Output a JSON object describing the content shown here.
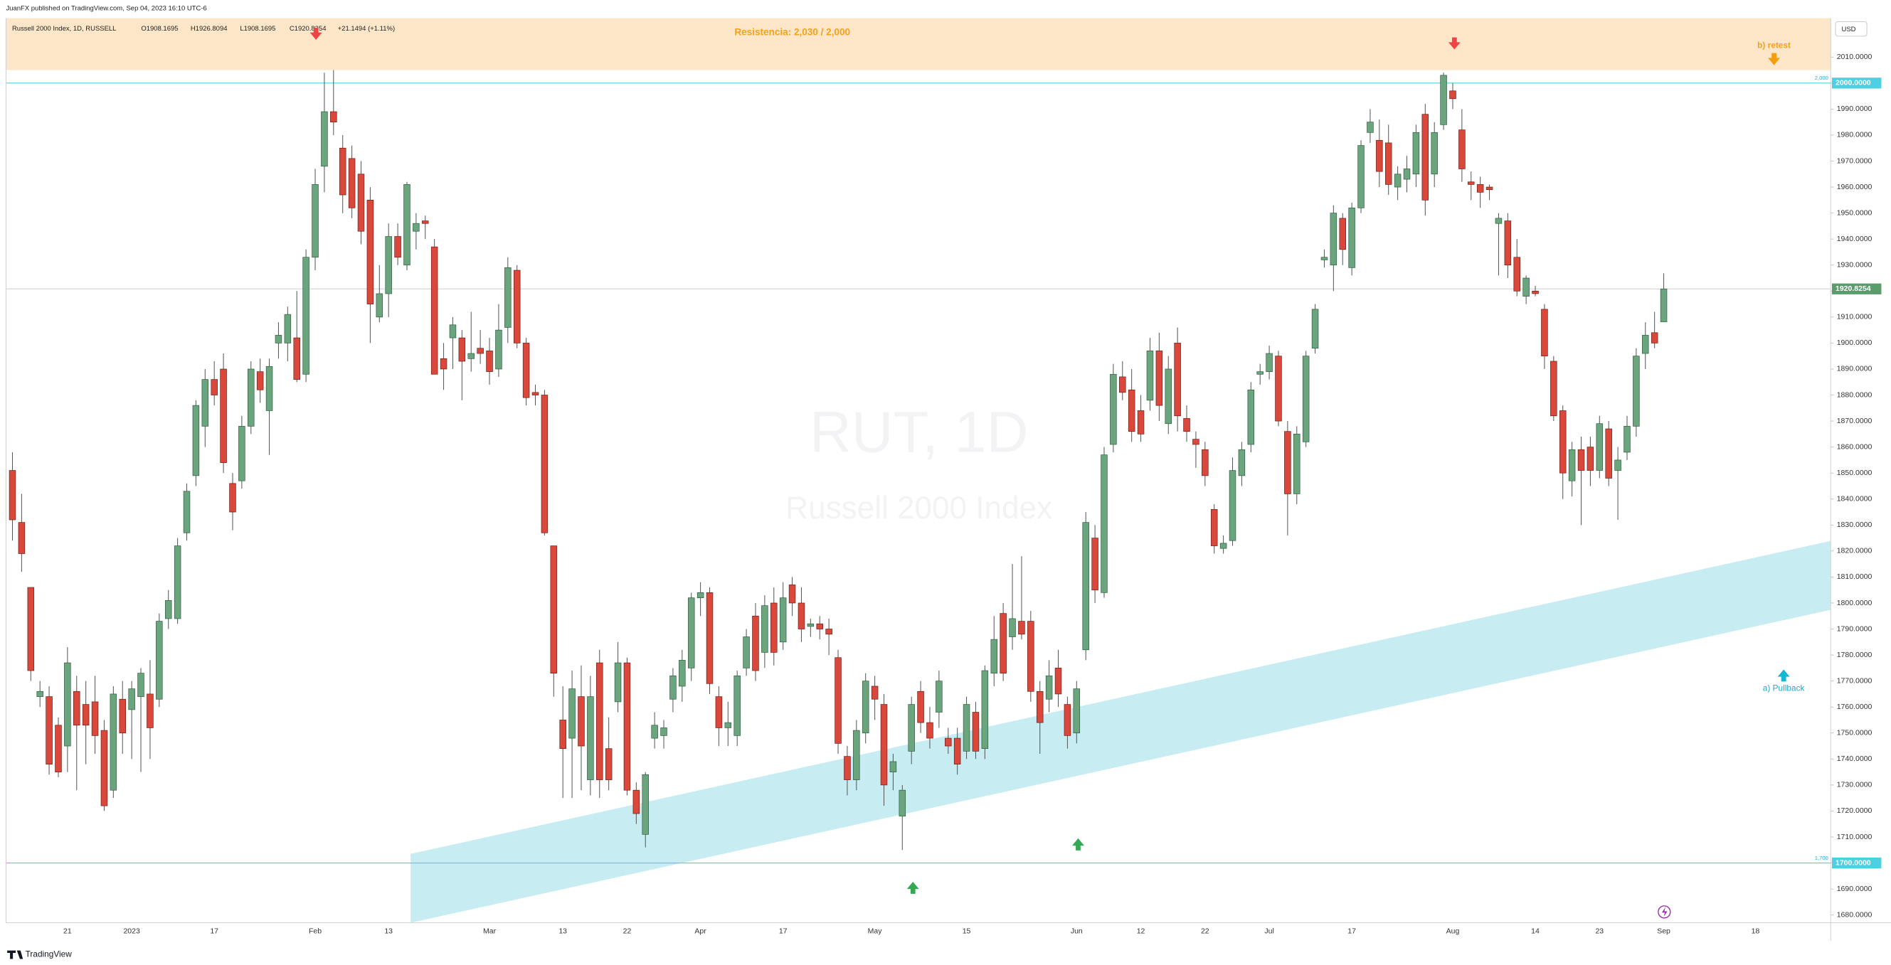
{
  "header": {
    "published": "JuanFX published on TradingView.com, Sep 04, 2023 16:10 UTC-6"
  },
  "footer": {
    "brand": "TradingView"
  },
  "chart_data": {
    "type": "candlestick",
    "symbol": "Russell 2000 Index, 1D, RUSSELL",
    "legend": [
      "O1908.1695",
      "H1926.8094",
      "L1908.1695",
      "C1920.8254",
      "+21.1494 (+1.11%)"
    ],
    "watermark": [
      "RUT, 1D",
      "Russell 2000 Index"
    ],
    "currency": "USD",
    "annotations": [
      "Resistencia: 2,030 / 2,000",
      "b) retest",
      "a) Pullback"
    ],
    "up_color": "#6aa57e",
    "down_color": "#d9483b",
    "ohlc": [
      [
        1851,
        1858,
        1824,
        1832
      ],
      [
        1831,
        1842,
        1812,
        1819
      ],
      [
        1806,
        1806,
        1770,
        1774
      ],
      [
        1764,
        1770,
        1760,
        1766
      ],
      [
        1764,
        1768,
        1734,
        1738
      ],
      [
        1753,
        1756,
        1733,
        1735
      ],
      [
        1745,
        1783,
        1735,
        1777
      ],
      [
        1766,
        1772,
        1728,
        1753
      ],
      [
        1761,
        1770,
        1738,
        1753
      ],
      [
        1762,
        1772,
        1742,
        1749
      ],
      [
        1751,
        1755,
        1720,
        1722
      ],
      [
        1728,
        1768,
        1725,
        1765
      ],
      [
        1763,
        1770,
        1742,
        1750
      ],
      [
        1759,
        1770,
        1740,
        1767
      ],
      [
        1764,
        1775,
        1735,
        1773
      ],
      [
        1765,
        1778,
        1740,
        1752
      ],
      [
        1763,
        1796,
        1760,
        1793
      ],
      [
        1794,
        1805,
        1790,
        1801
      ],
      [
        1794,
        1825,
        1792,
        1822
      ],
      [
        1827,
        1846,
        1824,
        1843
      ],
      [
        1849,
        1878,
        1845,
        1876
      ],
      [
        1868,
        1890,
        1860,
        1886
      ],
      [
        1886,
        1893,
        1876,
        1880
      ],
      [
        1890,
        1896,
        1850,
        1854
      ],
      [
        1846,
        1850,
        1828,
        1835
      ],
      [
        1847,
        1872,
        1844,
        1868
      ],
      [
        1868,
        1893,
        1865,
        1890
      ],
      [
        1889,
        1894,
        1877,
        1882
      ],
      [
        1874,
        1894,
        1857,
        1891
      ],
      [
        1900,
        1908,
        1894,
        1903
      ],
      [
        1900,
        1914,
        1893,
        1911
      ],
      [
        1902,
        1920,
        1885,
        1886
      ],
      [
        1888,
        1936,
        1885,
        1933
      ],
      [
        1933,
        1967,
        1928,
        1961
      ],
      [
        1968,
        2004,
        1958,
        1989
      ],
      [
        1989,
        2005,
        1980,
        1985
      ],
      [
        1975,
        1980,
        1950,
        1957
      ],
      [
        1971,
        1976,
        1948,
        1952
      ],
      [
        1965,
        1970,
        1938,
        1943
      ],
      [
        1955,
        1960,
        1900,
        1915
      ],
      [
        1910,
        1930,
        1908,
        1919
      ],
      [
        1919,
        1946,
        1910,
        1941
      ],
      [
        1941,
        1946,
        1930,
        1933
      ],
      [
        1930,
        1962,
        1928,
        1961
      ],
      [
        1943,
        1950,
        1936,
        1946
      ],
      [
        1947,
        1949,
        1940,
        1946
      ],
      [
        1937,
        1940,
        1888,
        1888
      ],
      [
        1894,
        1900,
        1882,
        1890
      ],
      [
        1902,
        1910,
        1890,
        1907
      ],
      [
        1902,
        1905,
        1878,
        1893
      ],
      [
        1894,
        1912,
        1889,
        1896
      ],
      [
        1898,
        1905,
        1892,
        1896
      ],
      [
        1897,
        1902,
        1884,
        1889
      ],
      [
        1890,
        1915,
        1887,
        1905
      ],
      [
        1906,
        1933,
        1900,
        1929
      ],
      [
        1928,
        1930,
        1898,
        1900
      ],
      [
        1900,
        1902,
        1876,
        1879
      ],
      [
        1881,
        1884,
        1876,
        1880
      ],
      [
        1880,
        1882,
        1826,
        1827
      ],
      [
        1822,
        1822,
        1764,
        1773
      ],
      [
        1755,
        1768,
        1725,
        1744
      ],
      [
        1748,
        1774,
        1725,
        1767
      ],
      [
        1764,
        1776,
        1728,
        1745
      ],
      [
        1732,
        1772,
        1726,
        1764
      ],
      [
        1777,
        1782,
        1725,
        1732
      ],
      [
        1744,
        1756,
        1728,
        1732
      ],
      [
        1762,
        1785,
        1758,
        1777
      ],
      [
        1777,
        1779,
        1726,
        1728
      ],
      [
        1728,
        1731,
        1715,
        1719
      ],
      [
        1711,
        1735,
        1706,
        1734
      ],
      [
        1748,
        1758,
        1744,
        1753
      ],
      [
        1749,
        1755,
        1744,
        1752
      ],
      [
        1763,
        1775,
        1758,
        1772
      ],
      [
        1768,
        1782,
        1762,
        1778
      ],
      [
        1775,
        1804,
        1770,
        1802
      ],
      [
        1802,
        1808,
        1795,
        1804
      ],
      [
        1804,
        1806,
        1765,
        1769
      ],
      [
        1764,
        1768,
        1745,
        1752
      ],
      [
        1752,
        1762,
        1745,
        1754
      ],
      [
        1749,
        1774,
        1745,
        1772
      ],
      [
        1775,
        1790,
        1772,
        1787
      ],
      [
        1795,
        1800,
        1770,
        1774
      ],
      [
        1781,
        1803,
        1775,
        1799
      ],
      [
        1800,
        1806,
        1776,
        1781
      ],
      [
        1785,
        1808,
        1782,
        1802
      ],
      [
        1807,
        1810,
        1795,
        1800
      ],
      [
        1800,
        1806,
        1785,
        1790
      ],
      [
        1791,
        1794,
        1787,
        1792
      ],
      [
        1792,
        1795,
        1786,
        1790
      ],
      [
        1790,
        1794,
        1780,
        1788
      ],
      [
        1779,
        1782,
        1742,
        1746
      ],
      [
        1741,
        1745,
        1726,
        1732
      ],
      [
        1732,
        1755,
        1728,
        1751
      ],
      [
        1750,
        1773,
        1746,
        1770
      ],
      [
        1768,
        1772,
        1755,
        1763
      ],
      [
        1761,
        1765,
        1722,
        1730
      ],
      [
        1735,
        1742,
        1728,
        1739
      ],
      [
        1718,
        1730,
        1705,
        1728
      ],
      [
        1743,
        1764,
        1738,
        1761
      ],
      [
        1766,
        1770,
        1750,
        1754
      ],
      [
        1754,
        1760,
        1744,
        1748
      ],
      [
        1758,
        1774,
        1752,
        1770
      ],
      [
        1748,
        1752,
        1742,
        1745
      ],
      [
        1748,
        1752,
        1734,
        1738
      ],
      [
        1743,
        1764,
        1740,
        1761
      ],
      [
        1758,
        1762,
        1740,
        1743
      ],
      [
        1744,
        1776,
        1740,
        1774
      ],
      [
        1773,
        1795,
        1768,
        1786
      ],
      [
        1796,
        1800,
        1770,
        1773
      ],
      [
        1787,
        1815,
        1782,
        1794
      ],
      [
        1793,
        1818,
        1786,
        1788
      ],
      [
        1793,
        1797,
        1762,
        1766
      ],
      [
        1766,
        1770,
        1742,
        1754
      ],
      [
        1763,
        1778,
        1758,
        1772
      ],
      [
        1775,
        1782,
        1760,
        1765
      ],
      [
        1761,
        1764,
        1744,
        1749
      ],
      [
        1750,
        1770,
        1746,
        1767
      ],
      [
        1782,
        1835,
        1778,
        1831
      ],
      [
        1825,
        1830,
        1800,
        1805
      ],
      [
        1804,
        1860,
        1802,
        1857
      ],
      [
        1861,
        1892,
        1858,
        1888
      ],
      [
        1887,
        1893,
        1878,
        1881
      ],
      [
        1882,
        1890,
        1862,
        1866
      ],
      [
        1874,
        1880,
        1862,
        1865
      ],
      [
        1878,
        1902,
        1874,
        1897
      ],
      [
        1897,
        1904,
        1870,
        1876
      ],
      [
        1869,
        1895,
        1865,
        1890
      ],
      [
        1900,
        1906,
        1866,
        1872
      ],
      [
        1871,
        1876,
        1862,
        1866
      ],
      [
        1863,
        1866,
        1852,
        1861
      ],
      [
        1859,
        1862,
        1845,
        1849
      ],
      [
        1836,
        1838,
        1819,
        1822
      ],
      [
        1821,
        1826,
        1819,
        1823
      ],
      [
        1824,
        1856,
        1822,
        1851
      ],
      [
        1849,
        1862,
        1845,
        1859
      ],
      [
        1861,
        1885,
        1858,
        1882
      ],
      [
        1888,
        1892,
        1884,
        1889
      ],
      [
        1889,
        1899,
        1886,
        1896
      ],
      [
        1895,
        1897,
        1868,
        1870
      ],
      [
        1866,
        1870,
        1826,
        1842
      ],
      [
        1842,
        1868,
        1838,
        1865
      ],
      [
        1862,
        1897,
        1860,
        1895
      ],
      [
        1898,
        1915,
        1896,
        1913
      ],
      [
        1932,
        1936,
        1929,
        1933
      ],
      [
        1930,
        1953,
        1920,
        1950
      ],
      [
        1948,
        1950,
        1930,
        1936
      ],
      [
        1929,
        1954,
        1926,
        1952
      ],
      [
        1952,
        1978,
        1950,
        1976
      ],
      [
        1981,
        1990,
        1977,
        1985
      ],
      [
        1978,
        1986,
        1960,
        1966
      ],
      [
        1977,
        1984,
        1957,
        1961
      ],
      [
        1960,
        1968,
        1955,
        1965
      ],
      [
        1963,
        1972,
        1958,
        1967
      ],
      [
        1965,
        1984,
        1960,
        1981
      ],
      [
        1988,
        1992,
        1949,
        1955
      ],
      [
        1965,
        1985,
        1960,
        1981
      ],
      [
        1984,
        2004,
        1982,
        2003
      ],
      [
        1997,
        2000,
        1990,
        1994
      ],
      [
        1982,
        1990,
        1962,
        1967
      ],
      [
        1962,
        1966,
        1955,
        1961
      ],
      [
        1961,
        1964,
        1952,
        1958
      ],
      [
        1960,
        1961,
        1955,
        1959
      ],
      [
        1946,
        1950,
        1926,
        1948
      ],
      [
        1947,
        1950,
        1925,
        1930
      ],
      [
        1933,
        1940,
        1918,
        1920
      ],
      [
        1918,
        1926,
        1915,
        1925
      ],
      [
        1920,
        1922,
        1918,
        1919
      ],
      [
        1913,
        1915,
        1890,
        1895
      ],
      [
        1893,
        1895,
        1870,
        1872
      ],
      [
        1874,
        1876,
        1840,
        1850
      ],
      [
        1847,
        1862,
        1841,
        1859
      ],
      [
        1859,
        1864,
        1830,
        1851
      ],
      [
        1860,
        1864,
        1845,
        1851
      ],
      [
        1851,
        1872,
        1848,
        1869
      ],
      [
        1867,
        1870,
        1845,
        1848
      ],
      [
        1851,
        1860,
        1832,
        1855
      ],
      [
        1858,
        1872,
        1855,
        1868
      ],
      [
        1868,
        1898,
        1864,
        1895
      ],
      [
        1896,
        1908,
        1890,
        1903
      ],
      [
        1904,
        1912,
        1898,
        1900
      ],
      [
        1908.1695,
        1926.8094,
        1908.1695,
        1920.8254
      ]
    ],
    "xlim": [
      -0.7,
      198.2
    ],
    "xticks": [
      {
        "value": 6,
        "label": "21"
      },
      {
        "value": 13,
        "label": "2023"
      },
      {
        "value": 22,
        "label": "17"
      },
      {
        "value": 33,
        "label": "Feb"
      },
      {
        "value": 41,
        "label": "13"
      },
      {
        "value": 52,
        "label": "Mar"
      },
      {
        "value": 60,
        "label": "13"
      },
      {
        "value": 67,
        "label": "22"
      },
      {
        "value": 75,
        "label": "Apr"
      },
      {
        "value": 84,
        "label": "17"
      },
      {
        "value": 94,
        "label": "May"
      },
      {
        "value": 104,
        "label": "15"
      },
      {
        "value": 116,
        "label": "Jun"
      },
      {
        "value": 123,
        "label": "12"
      },
      {
        "value": 130,
        "label": "22"
      },
      {
        "value": 137,
        "label": "Jul"
      },
      {
        "value": 146,
        "label": "17"
      },
      {
        "value": 157,
        "label": "Aug"
      },
      {
        "value": 166,
        "label": "14"
      },
      {
        "value": 173,
        "label": "23"
      },
      {
        "value": 180,
        "label": "Sep"
      },
      {
        "value": 190,
        "label": "18"
      }
    ],
    "ylim": [
      1677,
      2025
    ],
    "yticks": [
      {
        "value": 2010,
        "label": "2010.0000"
      },
      {
        "value": 2000,
        "label": "2000.0000"
      },
      {
        "value": 1990,
        "label": "1990.0000"
      },
      {
        "value": 1980,
        "label": "1980.0000"
      },
      {
        "value": 1970,
        "label": "1970.0000"
      },
      {
        "value": 1960,
        "label": "1960.0000"
      },
      {
        "value": 1950,
        "label": "1950.0000"
      },
      {
        "value": 1940,
        "label": "1940.0000"
      },
      {
        "value": 1930,
        "label": "1930.0000"
      },
      {
        "value": 1920,
        "label": "1920.0000"
      },
      {
        "value": 1910,
        "label": "1910.0000"
      },
      {
        "value": 1900,
        "label": "1900.0000"
      },
      {
        "value": 1890,
        "label": "1890.0000"
      },
      {
        "value": 1880,
        "label": "1880.0000"
      },
      {
        "value": 1870,
        "label": "1870.0000"
      },
      {
        "value": 1860,
        "label": "1860.0000"
      },
      {
        "value": 1850,
        "label": "1850.0000"
      },
      {
        "value": 1840,
        "label": "1840.0000"
      },
      {
        "value": 1830,
        "label": "1830.0000"
      },
      {
        "value": 1820,
        "label": "1820.0000"
      },
      {
        "value": 1810,
        "label": "1810.0000"
      },
      {
        "value": 1800,
        "label": "1800.0000"
      },
      {
        "value": 1790,
        "label": "1790.0000"
      },
      {
        "value": 1780,
        "label": "1780.0000"
      },
      {
        "value": 1770,
        "label": "1770.0000"
      },
      {
        "value": 1760,
        "label": "1760.0000"
      },
      {
        "value": 1750,
        "label": "1750.0000"
      },
      {
        "value": 1740,
        "label": "1740.0000"
      },
      {
        "value": 1730,
        "label": "1730.0000"
      },
      {
        "value": 1720,
        "label": "1720.0000"
      },
      {
        "value": 1710,
        "label": "1710.0000"
      },
      {
        "value": 1700,
        "label": "1700.0000"
      },
      {
        "value": 1690,
        "label": "1690.0000"
      },
      {
        "value": 1680,
        "label": "1680.0000"
      }
    ],
    "hlines": [
      {
        "value": 2000,
        "label": "2,000",
        "axis_label": "2000.0000",
        "color": "#4dd0e1"
      },
      {
        "value": 1700,
        "label": "1,700",
        "axis_label": "1700.0000",
        "color": "#4dd0e1"
      }
    ],
    "last": {
      "value": 1920.8254,
      "color": "#5b9c6c"
    },
    "zone": {
      "range": [
        2005,
        2030
      ],
      "color": "#fde7c8"
    },
    "channel": {
      "lower": [
        [
          43.4,
          1677
        ],
        [
          198.2,
          1797.4
        ]
      ],
      "upper": [
        [
          43.4,
          1703.5
        ],
        [
          198.2,
          1823.9
        ]
      ],
      "color": "#b9e8f0"
    }
  }
}
